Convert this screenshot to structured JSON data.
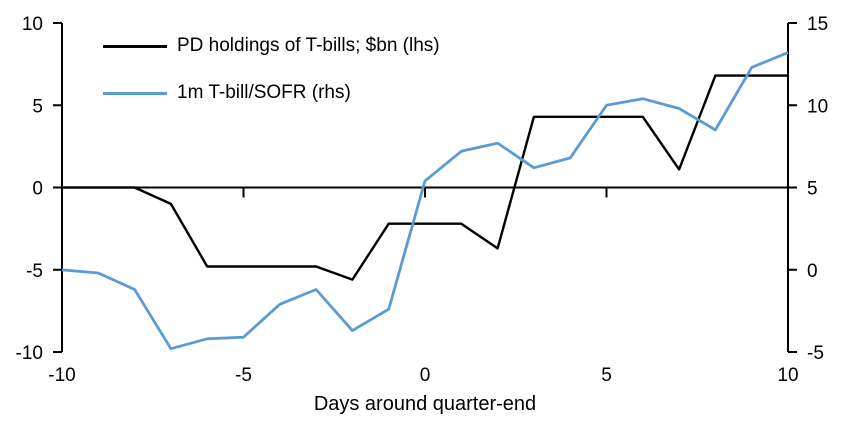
{
  "chart_data": {
    "type": "line",
    "title": "",
    "xlabel": "Days around quarter-end",
    "grid": false,
    "legend_position": "top-left",
    "x": [
      -10,
      -9,
      -8,
      -7,
      -6,
      -5,
      -4,
      -3,
      -2,
      -1,
      0,
      1,
      2,
      3,
      4,
      5,
      6,
      7,
      8,
      9,
      10
    ],
    "x_ticks": [
      -10,
      -5,
      0,
      5,
      10
    ],
    "left_axis": {
      "range": [
        -10,
        10
      ],
      "ticks": [
        10,
        5,
        0,
        -5,
        -10
      ]
    },
    "right_axis": {
      "range": [
        -5,
        15
      ],
      "ticks": [
        15,
        10,
        5,
        0,
        -5
      ]
    },
    "series": [
      {
        "id": "pd-holdings-line",
        "name": "PD holdings of T-bills; $bn (lhs)",
        "axis": "left",
        "color": "#000000",
        "values": [
          0,
          0,
          0,
          -1.0,
          -4.8,
          -4.8,
          -4.8,
          -4.8,
          -5.6,
          -2.2,
          -2.2,
          -2.2,
          -3.7,
          4.3,
          4.3,
          4.3,
          4.3,
          1.1,
          6.8,
          6.8,
          6.8
        ]
      },
      {
        "id": "tbill-sofr-line",
        "name": "1m T-bill/SOFR (rhs)",
        "axis": "right",
        "color": "#5B9BD5",
        "values": [
          0,
          -0.2,
          -1.2,
          -4.8,
          -4.2,
          -4.1,
          -2.1,
          -1.2,
          -3.7,
          -2.4,
          5.4,
          7.2,
          7.7,
          6.2,
          6.8,
          10.0,
          10.4,
          9.8,
          8.5,
          12.3,
          13.2
        ]
      }
    ]
  }
}
